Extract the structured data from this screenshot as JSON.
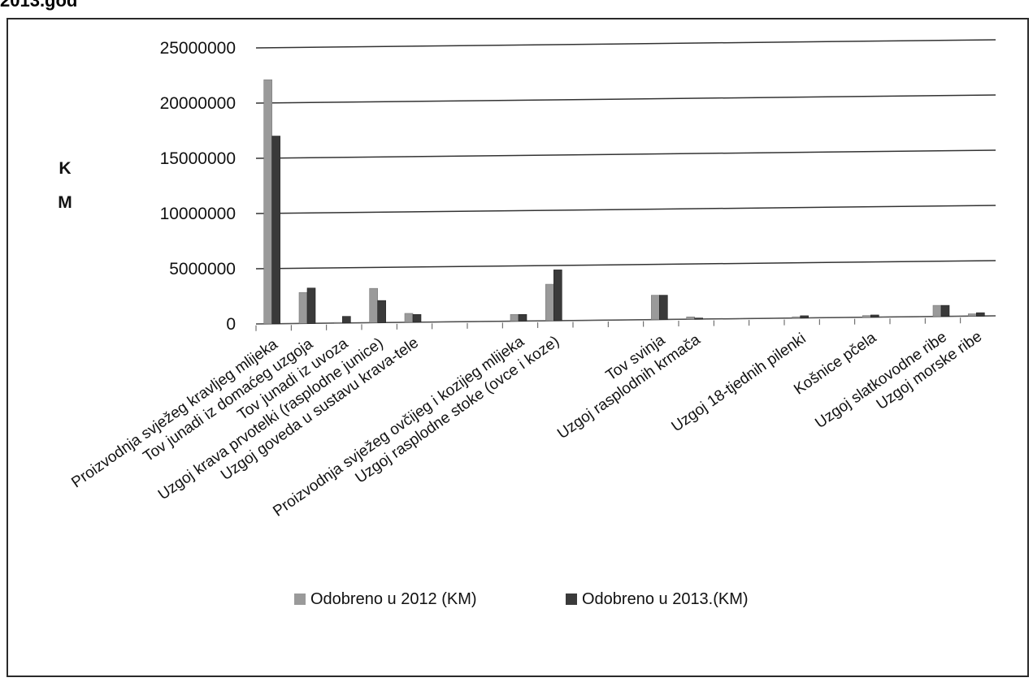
{
  "page": {
    "heading": "2013.god"
  },
  "chart_data": {
    "type": "bar",
    "title": "",
    "ylabel_lines": [
      "K",
      "M"
    ],
    "yticks": [
      0,
      5000000,
      10000000,
      15000000,
      20000000,
      25000000
    ],
    "ylim": [
      0,
      25000000
    ],
    "grid": true,
    "legend_position": "bottom",
    "categories": [
      "Proizvodnja svježeg kravljeg mlijeka",
      "Tov junadi iz domaćeg uzgoja",
      "Tov junadi iz uvoza",
      "Uzgoj krava prvotelki (rasplodne junice)",
      "Uzgoj goveda u sustavu krava-tele",
      "",
      "",
      "Proizvodnja svježeg ovčijeg i kozijeg mlijeka",
      "Uzgoj rasplodne stoke (ovce i koze)",
      "",
      "",
      "Tov svinja",
      "Uzgoj rasplodnih krmača",
      "",
      "",
      "Uzgoj 18-tjednih pilenki",
      "",
      "Košnice pčela",
      "",
      "Uzgoj slatkovodne ribe",
      "Uzgoj morske ribe"
    ],
    "series": [
      {
        "name": "Odobreno u 2012 (KM)",
        "color": "#9a9a9a",
        "values": [
          22100000,
          2800000,
          50000,
          3100000,
          800000,
          0,
          0,
          600000,
          3300000,
          0,
          0,
          2200000,
          200000,
          0,
          0,
          100000,
          0,
          150000,
          0,
          1000000,
          200000
        ]
      },
      {
        "name": "Odobreno u 2013.(KM)",
        "color": "#3a3a3a",
        "values": [
          17000000,
          3200000,
          600000,
          2000000,
          700000,
          0,
          0,
          600000,
          4600000,
          0,
          0,
          2200000,
          100000,
          0,
          0,
          200000,
          0,
          200000,
          0,
          1000000,
          300000
        ]
      }
    ]
  }
}
